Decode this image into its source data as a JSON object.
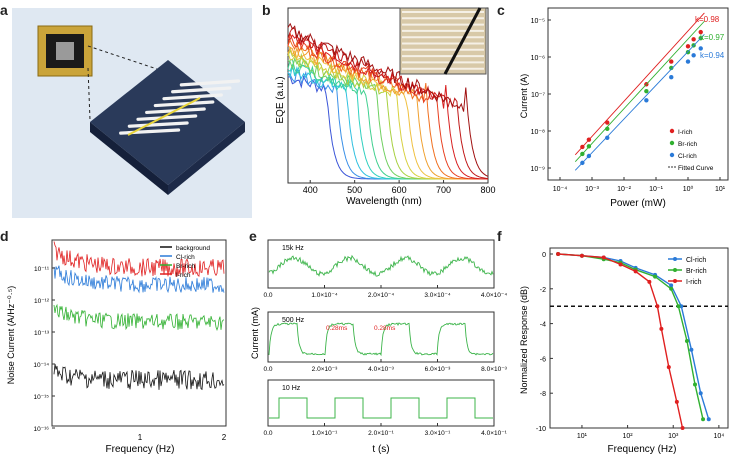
{
  "panels": {
    "a": {
      "letter": "a"
    },
    "b": {
      "letter": "b",
      "xlabel": "Wavelength (nm)",
      "ylabel": "EQE (a.u.)",
      "xticks": [
        "400",
        "500",
        "600",
        "700",
        "800"
      ]
    },
    "c": {
      "letter": "c",
      "xlabel": "Power (mW)",
      "ylabel": "Current (A)",
      "xticks": [
        "10⁻⁴",
        "10⁻³",
        "10⁻²",
        "10⁻¹",
        "10⁰",
        "10¹"
      ],
      "yticks": [
        "10⁻⁵",
        "10⁻⁶",
        "10⁻⁷",
        "10⁻⁸",
        "10⁻⁹"
      ],
      "legend": [
        "I-rich",
        "Br-rich",
        "Cl-rich",
        "Fitted Curve"
      ],
      "k_labels": [
        "k=0.98",
        "k=0.97",
        "k=0.94"
      ],
      "colors": {
        "I-rich": "#e02020",
        "Br-rich": "#30b030",
        "Cl-rich": "#2a7ad8"
      }
    },
    "d": {
      "letter": "d",
      "xlabel": "Frequency (Hz)",
      "ylabel": "Noise Current (A/Hz⁻⁰·⁵)",
      "xticks": [
        "1",
        "2"
      ],
      "yticks": [
        "10⁻¹¹",
        "10⁻¹²",
        "10⁻¹³",
        "10⁻¹⁴",
        "10⁻¹⁵",
        "10⁻¹⁶"
      ],
      "legend": [
        "background",
        "Cl-rich",
        "Br-rich",
        "I-rich"
      ]
    },
    "e": {
      "letter": "e",
      "xlabel": "t (s)",
      "ylabel": "Current (mA)",
      "top": {
        "label": "15k Hz",
        "xticks": [
          "0.0",
          "1.0×10⁻⁴",
          "2.0×10⁻⁴",
          "3.0×10⁻⁴",
          "4.0×10⁻⁴"
        ]
      },
      "mid": {
        "label": "500 Hz",
        "xticks": [
          "0.0",
          "2.0×10⁻³",
          "4.0×10⁻³",
          "6.0×10⁻³",
          "8.0×10⁻³"
        ],
        "ann1": "0.28ms",
        "ann2": "0.28ms"
      },
      "bot": {
        "label": "10 Hz",
        "xticks": [
          "0.0",
          "1.0×10⁻¹",
          "2.0×10⁻¹",
          "3.0×10⁻¹",
          "4.0×10⁻¹"
        ]
      }
    },
    "f": {
      "letter": "f",
      "xlabel": "Frequency (Hz)",
      "ylabel": "Normalized Response (dB)",
      "xticks": [
        "10¹",
        "10²",
        "10³",
        "10⁴"
      ],
      "yticks": [
        "0",
        "-2",
        "-4",
        "-6",
        "-8",
        "-10"
      ],
      "legend": [
        "Cl-rich",
        "Br-rich",
        "I-rich"
      ]
    }
  },
  "chart_data": [
    {
      "type": "line",
      "panel": "b",
      "xlabel": "Wavelength (nm)",
      "ylabel": "EQE (a.u.)",
      "xlim": [
        350,
        800
      ]
    },
    {
      "type": "scatter",
      "panel": "c",
      "xlabel": "Power (mW)",
      "ylabel": "Current (A)",
      "xscale": "log",
      "yscale": "log",
      "series": [
        {
          "name": "I-rich",
          "slope": 0.98,
          "x": [
            0.0005,
            0.0008,
            0.003,
            0.05,
            0.3,
            1.0,
            1.5,
            2.5
          ],
          "y": [
            2.5e-09,
            4e-09,
            1.2e-08,
            1.4e-07,
            6e-07,
            1.6e-06,
            2.5e-06,
            4e-06
          ]
        },
        {
          "name": "Br-rich",
          "slope": 0.97,
          "x": [
            0.0005,
            0.0008,
            0.003,
            0.05,
            0.3,
            1.0,
            1.5,
            2.5
          ],
          "y": [
            1.6e-09,
            2.6e-09,
            8e-09,
            9e-08,
            4e-07,
            1.1e-06,
            1.7e-06,
            2.7e-06
          ]
        },
        {
          "name": "Cl-rich",
          "slope": 0.94,
          "x": [
            0.0005,
            0.0008,
            0.003,
            0.05,
            0.3,
            1.0,
            1.5,
            2.5
          ],
          "y": [
            9e-10,
            1.4e-09,
            4.5e-09,
            5e-08,
            2.2e-07,
            6e-07,
            9e-07,
            1.4e-06
          ]
        }
      ]
    },
    {
      "type": "line",
      "panel": "d",
      "xlabel": "Frequency (Hz)",
      "ylabel": "Noise Current",
      "series": [
        {
          "name": "background",
          "level_log": -14.7
        },
        {
          "name": "Cl-rich",
          "level_log": -12.2
        },
        {
          "name": "Br-rich",
          "level_log": -13.1
        },
        {
          "name": "I-rich",
          "level_log": -11.9
        }
      ]
    },
    {
      "type": "line",
      "panel": "f",
      "xlabel": "Frequency (Hz)",
      "ylabel": "Normalized Response (dB)",
      "xscale": "log",
      "ylim": [
        -10,
        0.5
      ],
      "reference_line": -3,
      "series": [
        {
          "name": "Cl-rich",
          "x": [
            3,
            10,
            30,
            70,
            150,
            400,
            900,
            1500,
            2500,
            4000,
            6000
          ],
          "y": [
            0,
            -0.1,
            -0.2,
            -0.4,
            -0.8,
            -1.2,
            -1.8,
            -3.0,
            -5.5,
            -8.0,
            -9.5
          ]
        },
        {
          "name": "Br-rich",
          "x": [
            3,
            10,
            30,
            70,
            150,
            400,
            900,
            1300,
            2000,
            3000,
            4500
          ],
          "y": [
            0,
            -0.1,
            -0.3,
            -0.5,
            -0.9,
            -1.3,
            -2.0,
            -3.0,
            -5.0,
            -7.5,
            -9.5
          ]
        },
        {
          "name": "I-rich",
          "x": [
            3,
            10,
            30,
            70,
            150,
            300,
            450,
            550,
            800,
            1200,
            1600
          ],
          "y": [
            0,
            -0.1,
            -0.2,
            -0.6,
            -1.0,
            -1.6,
            -3.0,
            -4.3,
            -6.5,
            -8.5,
            -10
          ]
        }
      ]
    }
  ]
}
